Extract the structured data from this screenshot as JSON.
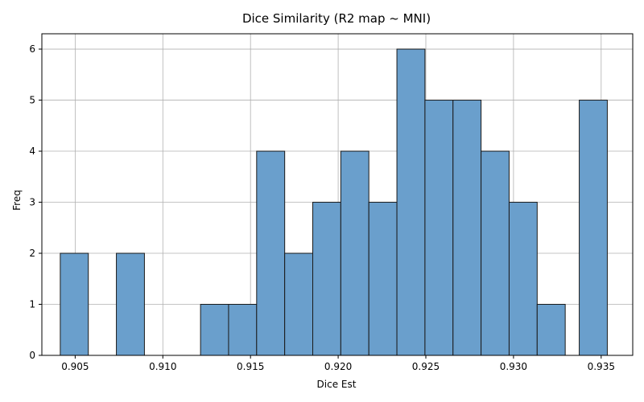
{
  "chart_data": {
    "type": "bar",
    "title": "Dice Similarity (R2 map ~ MNI)",
    "xlabel": "Dice Est",
    "ylabel": "Freq",
    "xlim": [
      0.9031,
      0.9368
    ],
    "ylim": [
      0,
      6.3
    ],
    "xticks": [
      "0.905",
      "0.910",
      "0.915",
      "0.920",
      "0.925",
      "0.930",
      "0.935"
    ],
    "xtick_values": [
      0.905,
      0.91,
      0.915,
      0.92,
      0.925,
      0.93,
      0.935
    ],
    "yticks": [
      "0",
      "1",
      "2",
      "3",
      "4",
      "5",
      "6"
    ],
    "ytick_values": [
      0,
      1,
      2,
      3,
      4,
      5,
      6
    ],
    "grid": true,
    "bar_color": "#6a9fcc",
    "edge_color": "#1a1a1a",
    "bins": [
      {
        "x0": 0.90415,
        "x1": 0.90575,
        "count": 2
      },
      {
        "x0": 0.90735,
        "x1": 0.90895,
        "count": 2
      },
      {
        "x0": 0.91215,
        "x1": 0.91375,
        "count": 1
      },
      {
        "x0": 0.91375,
        "x1": 0.91535,
        "count": 1
      },
      {
        "x0": 0.91535,
        "x1": 0.91695,
        "count": 4
      },
      {
        "x0": 0.91695,
        "x1": 0.91855,
        "count": 2
      },
      {
        "x0": 0.91855,
        "x1": 0.92015,
        "count": 3
      },
      {
        "x0": 0.92015,
        "x1": 0.92175,
        "count": 4
      },
      {
        "x0": 0.92175,
        "x1": 0.92335,
        "count": 3
      },
      {
        "x0": 0.92335,
        "x1": 0.92495,
        "count": 6
      },
      {
        "x0": 0.92495,
        "x1": 0.92655,
        "count": 5
      },
      {
        "x0": 0.92655,
        "x1": 0.92815,
        "count": 5
      },
      {
        "x0": 0.92815,
        "x1": 0.92975,
        "count": 4
      },
      {
        "x0": 0.92975,
        "x1": 0.93135,
        "count": 3
      },
      {
        "x0": 0.93135,
        "x1": 0.93295,
        "count": 1
      },
      {
        "x0": 0.93375,
        "x1": 0.93535,
        "count": 5
      }
    ]
  }
}
